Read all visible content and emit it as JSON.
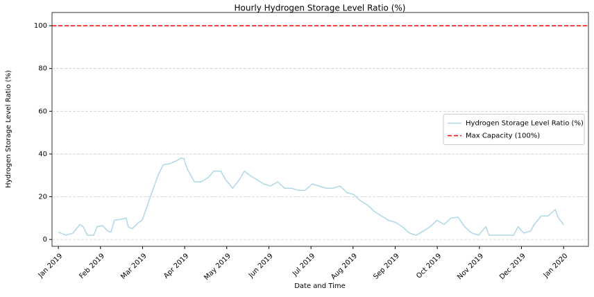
{
  "chart_data": {
    "type": "line",
    "title": "Hourly Hydrogen Storage Level Ratio (%)",
    "x_label": "Date and Time",
    "y_label": "Hydrogen Storage Level Ratio (%)",
    "xlim": [
      -0.15,
      12.59
    ],
    "ylim": [
      -3.2,
      106.2
    ],
    "xticks": [
      {
        "value": 0,
        "label": "Jan 2019"
      },
      {
        "value": 1,
        "label": "Feb 2019"
      },
      {
        "value": 2,
        "label": "Mar 2019"
      },
      {
        "value": 3,
        "label": "Apr 2019"
      },
      {
        "value": 4,
        "label": "May 2019"
      },
      {
        "value": 5,
        "label": "Jun 2019"
      },
      {
        "value": 6,
        "label": "Jul 2019"
      },
      {
        "value": 7,
        "label": "Aug 2019"
      },
      {
        "value": 8,
        "label": "Sep 2019"
      },
      {
        "value": 9,
        "label": "Oct 2019"
      },
      {
        "value": 10,
        "label": "Nov 2019"
      },
      {
        "value": 11,
        "label": "Dec 2019"
      },
      {
        "value": 12,
        "label": "Jan 2020"
      }
    ],
    "yticks": [
      0,
      20,
      40,
      60,
      80,
      100
    ],
    "grid": "y",
    "legend": "center right",
    "x": [
      0,
      0.18,
      0.35,
      0.51,
      0.59,
      0.69,
      0.84,
      0.92,
      1.05,
      1.17,
      1.25,
      1.33,
      1.5,
      1.61,
      1.66,
      1.75,
      1.91,
      1.99,
      2.08,
      2.24,
      2.37,
      2.49,
      2.65,
      2.82,
      2.9,
      2.98,
      3.06,
      3.23,
      3.39,
      3.56,
      3.69,
      3.86,
      3.97,
      4.14,
      4.3,
      4.42,
      4.55,
      4.71,
      4.88,
      5.04,
      5.21,
      5.37,
      5.54,
      5.7,
      5.86,
      6.03,
      6.19,
      6.36,
      6.52,
      6.69,
      6.85,
      7.02,
      7.18,
      7.35,
      7.51,
      7.68,
      7.84,
      8.01,
      8.17,
      8.34,
      8.5,
      8.67,
      8.83,
      8.99,
      9.16,
      9.32,
      9.49,
      9.65,
      9.82,
      9.98,
      10.15,
      10.23,
      10.48,
      10.81,
      10.92,
      11.05,
      11.22,
      11.3,
      11.47,
      11.63,
      11.8,
      11.88,
      12.0
    ],
    "series": [
      {
        "name": "Hydrogen Storage Level Ratio (%)",
        "color": "#add8e6",
        "values": [
          3.5,
          2,
          3,
          7,
          6,
          2,
          2,
          6,
          6.5,
          4,
          3.5,
          9,
          9.5,
          10,
          6,
          5,
          8,
          9,
          14,
          23,
          30,
          35,
          35.5,
          37,
          38,
          38,
          33,
          27,
          27,
          29,
          32,
          32,
          28,
          24,
          28,
          32,
          30,
          28,
          26,
          25,
          27,
          24,
          24,
          23,
          23,
          26,
          25,
          24,
          24,
          25,
          22,
          21,
          18,
          16,
          13,
          11,
          9,
          8,
          6,
          3,
          2,
          4,
          6,
          9,
          7,
          10,
          10.5,
          6,
          3,
          2,
          6,
          2,
          2,
          2,
          6,
          3,
          4,
          7,
          11,
          11,
          14,
          10,
          7
        ]
      }
    ],
    "reference_line": {
      "name": "Max Capacity (100%)",
      "value": 100,
      "color": "#ff0000"
    }
  }
}
